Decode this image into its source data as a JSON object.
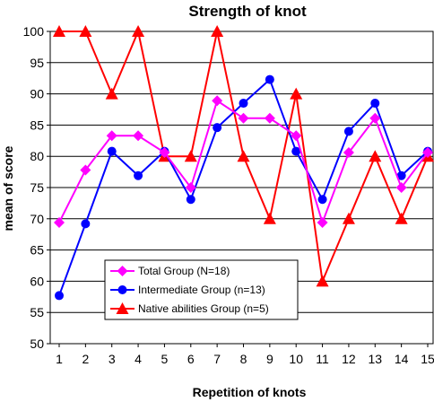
{
  "chart_data": {
    "type": "line",
    "title": "Strength of knot",
    "xlabel": "Repetition of knots",
    "ylabel": "mean of score",
    "x": [
      1,
      2,
      3,
      4,
      5,
      6,
      7,
      8,
      9,
      10,
      11,
      12,
      13,
      14,
      15
    ],
    "ylim": [
      50,
      100
    ],
    "yticks": [
      50,
      55,
      60,
      65,
      70,
      75,
      80,
      85,
      90,
      95,
      100
    ],
    "grid": "horizontal",
    "legend_position": "bottom-left",
    "series": [
      {
        "name": "Total Group (N=18)",
        "color": "#ff00ff",
        "marker": "diamond",
        "values": [
          69.4,
          77.8,
          83.3,
          83.3,
          80.6,
          75.0,
          88.9,
          86.1,
          86.1,
          83.3,
          69.4,
          80.6,
          86.1,
          75.0,
          80.6
        ]
      },
      {
        "name": "Intermediate Group (n=13)",
        "color": "#0000ff",
        "marker": "circle",
        "values": [
          57.7,
          69.2,
          80.8,
          76.9,
          80.8,
          73.1,
          84.6,
          88.5,
          92.3,
          80.8,
          73.1,
          84.0,
          88.5,
          76.9,
          80.8
        ]
      },
      {
        "name": "Native abilities Group (n=5)",
        "color": "#ff0000",
        "marker": "triangle",
        "values": [
          100,
          100,
          90,
          100,
          80,
          80,
          100,
          80,
          70,
          90,
          60,
          70,
          80,
          70,
          80
        ]
      }
    ]
  }
}
